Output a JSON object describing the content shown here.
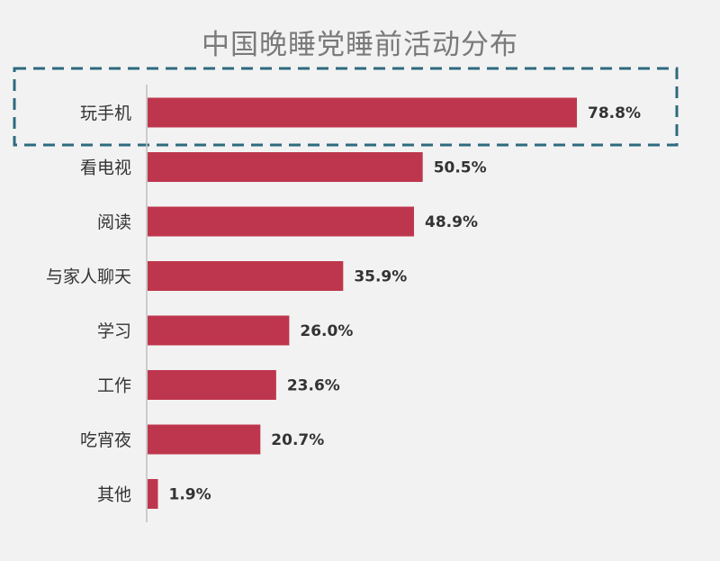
{
  "chart_data": {
    "type": "bar",
    "orientation": "horizontal",
    "title": "中国晚睡党睡前活动分布",
    "categories": [
      "玩手机",
      "看电视",
      "阅读",
      "与家人聊天",
      "学习",
      "工作",
      "吃宵夜",
      "其他"
    ],
    "values": [
      78.8,
      50.5,
      48.9,
      35.9,
      26.0,
      23.6,
      20.7,
      1.9
    ],
    "value_labels": [
      "78.8%",
      "50.5%",
      "48.9%",
      "35.9%",
      "26.0%",
      "23.6%",
      "20.7%",
      "1.9%"
    ],
    "unit": "%",
    "xlim": [
      0,
      100
    ],
    "grid": false,
    "legend": "none",
    "highlighted_category": "玩手机",
    "colors": {
      "bar": "#be364d",
      "axis": "#bfbfbf",
      "highlight_box": "#2e6a7e",
      "background": "#f2f2f2",
      "title": "#7a7a7a",
      "text": "#333333"
    }
  }
}
